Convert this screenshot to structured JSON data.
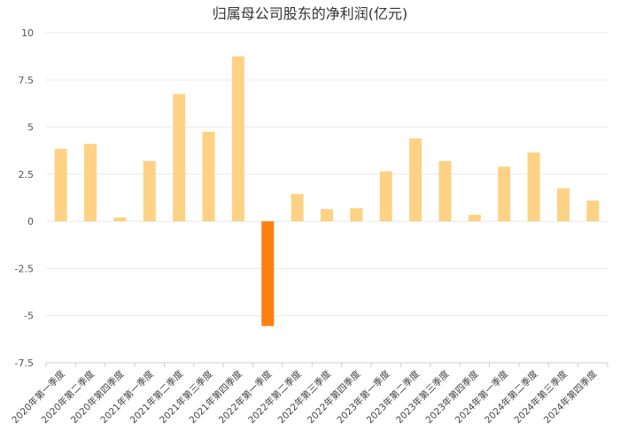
{
  "chart_data": {
    "type": "bar",
    "title": "归属母公司股东的净利润(亿元)",
    "xlabel": "",
    "ylabel": "",
    "ylim": [
      -7.5,
      10
    ],
    "yticks": [
      10,
      7.5,
      5,
      2.5,
      0,
      -2.5,
      -5,
      -7.5
    ],
    "ytick_labels": [
      "10",
      "7.5",
      "5",
      "2.5",
      "0",
      "-2.5",
      "-5",
      "-7.5"
    ],
    "grid": true,
    "categories": [
      "2020年第一季度",
      "2020年第二季度",
      "2020年第四季度",
      "2021年第一季度",
      "2021年第二季度",
      "2021年第三季度",
      "2021年第四季度",
      "2022年第一季度",
      "2022年第二季度",
      "2022年第三季度",
      "2022年第四季度",
      "2023年第一季度",
      "2023年第二季度",
      "2023年第三季度",
      "2023年第四季度",
      "2024年第一季度",
      "2024年第二季度",
      "2024年第三季度",
      "2024年第四季度"
    ],
    "values": [
      3.85,
      4.1,
      0.2,
      3.2,
      6.75,
      4.75,
      8.75,
      -5.55,
      1.45,
      0.65,
      0.7,
      2.65,
      4.4,
      3.2,
      0.35,
      2.9,
      3.65,
      1.75,
      1.1
    ],
    "colors": {
      "positive": "#FDD284",
      "negative": "#FF7F0E",
      "grid": "#E8E8E8",
      "axis": "#CCCCCC"
    }
  }
}
